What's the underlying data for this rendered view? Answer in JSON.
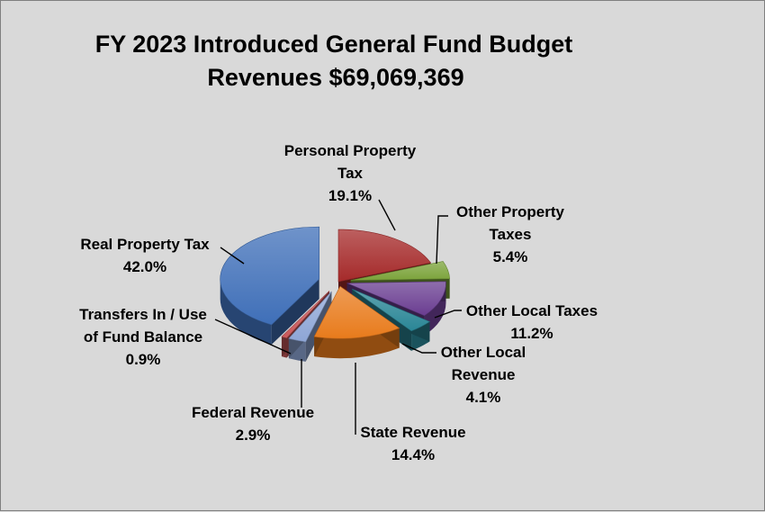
{
  "chart_data": {
    "type": "pie",
    "title_lines": [
      "FY 2023 Introduced General Fund Budget",
      "Revenues $69,069,369"
    ],
    "slices": [
      {
        "name_lines": [
          "Personal Property",
          "Tax"
        ],
        "pct_label": "19.1%",
        "value": 19.1,
        "color": "#a52a2a"
      },
      {
        "name_lines": [
          "Other Property",
          "Taxes"
        ],
        "pct_label": "5.4%",
        "value": 5.4,
        "color": "#7ba33a"
      },
      {
        "name_lines": [
          "Other Local Taxes"
        ],
        "pct_label": "11.2%",
        "value": 11.2,
        "color": "#6a3d91"
      },
      {
        "name_lines": [
          "Other Local",
          "Revenue"
        ],
        "pct_label": "4.1%",
        "value": 4.1,
        "color": "#2a8696"
      },
      {
        "name_lines": [
          "State Revenue"
        ],
        "pct_label": "14.4%",
        "value": 14.4,
        "color": "#e87b1c"
      },
      {
        "name_lines": [
          "Federal Revenue"
        ],
        "pct_label": "2.9%",
        "value": 2.9,
        "color": "#8ea6d6"
      },
      {
        "name_lines": [
          "Transfers In / Use",
          "of Fund Balance"
        ],
        "pct_label": "0.9%",
        "value": 0.9,
        "color": "#c9585a"
      },
      {
        "name_lines": [
          "Real Property Tax"
        ],
        "pct_label": "42.0%",
        "value": 42.0,
        "color": "#3f6fb8"
      }
    ]
  }
}
